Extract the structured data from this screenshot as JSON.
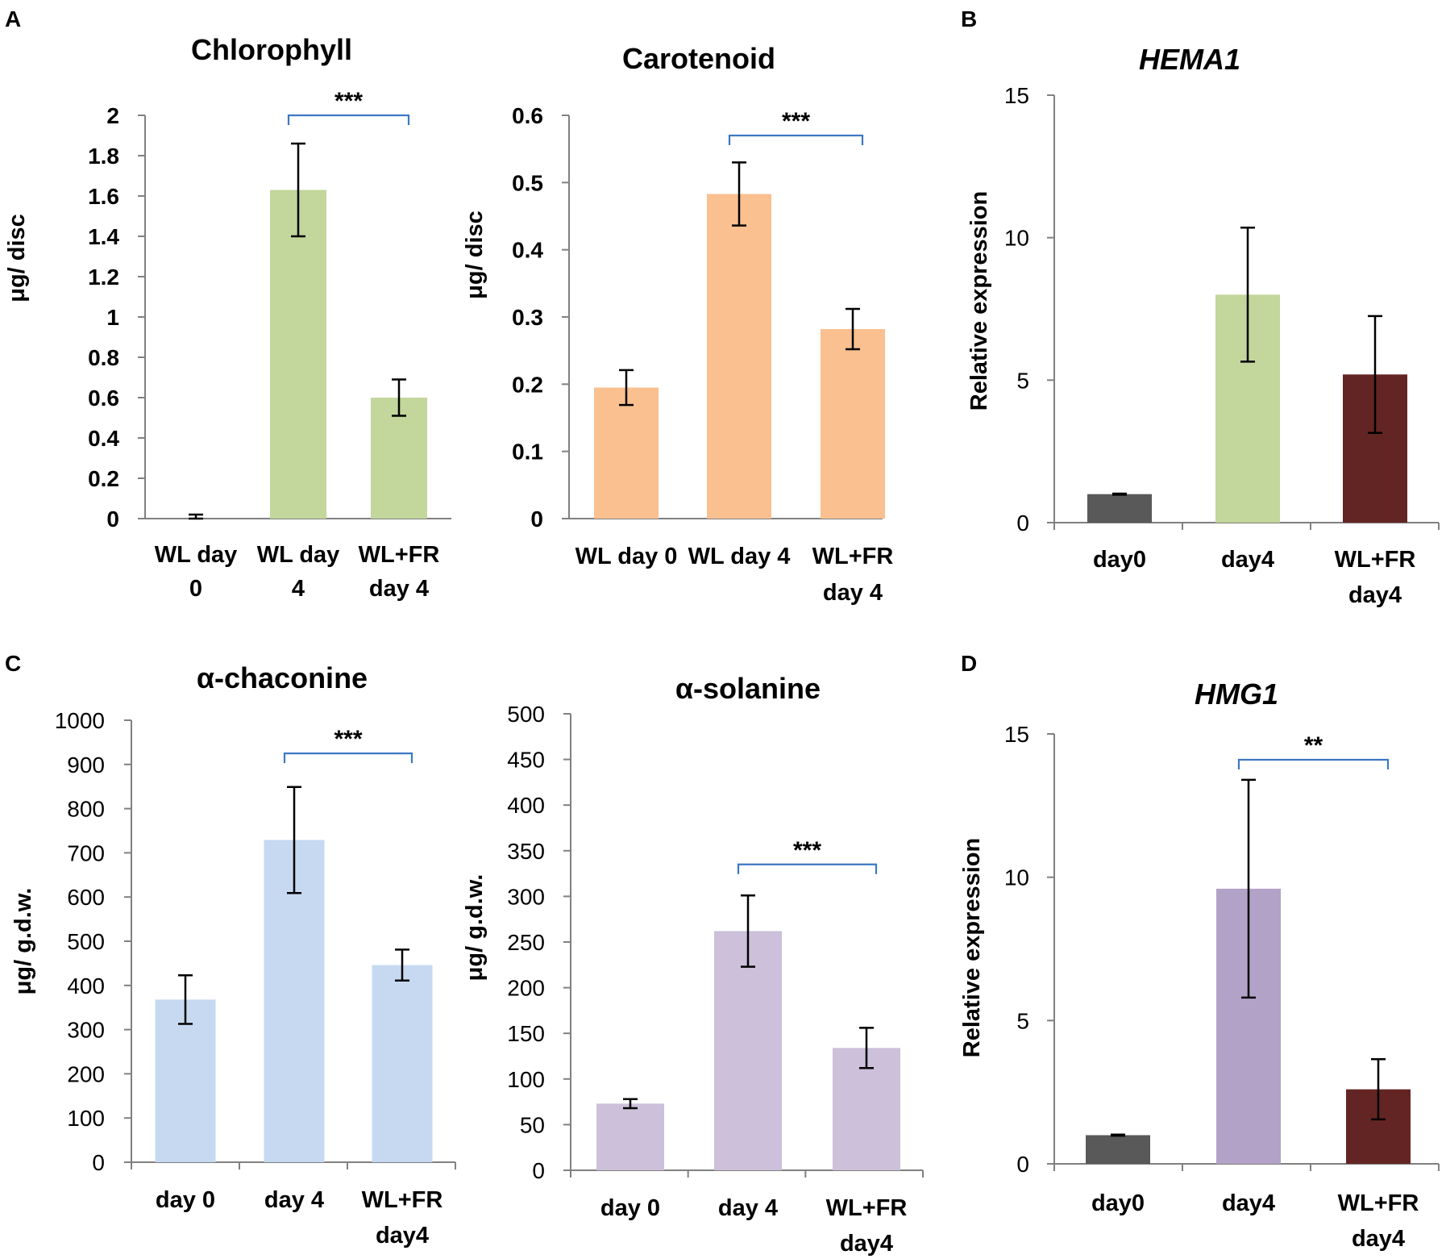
{
  "panel_labels": {
    "A": "A",
    "B": "B",
    "C": "C",
    "D": "D"
  },
  "chart_data": [
    {
      "id": "chlorophyll",
      "panel": "A",
      "type": "bar",
      "title": "Chlorophyll",
      "ylabel": "μg/ disc",
      "xlabel": "",
      "categories": [
        [
          "WL day",
          "0"
        ],
        [
          "WL day",
          "4"
        ],
        [
          "WL+FR",
          "day 4"
        ]
      ],
      "values": [
        0.0,
        1.63,
        0.6
      ],
      "errors": [
        0.02,
        0.23,
        0.09
      ],
      "colors": [
        "#c3d69b",
        "#c3d69b",
        "#c3d69b"
      ],
      "ylim": [
        0,
        2
      ],
      "yticks": [
        "0",
        "0.2",
        "0.4",
        "0.6",
        "0.8",
        "1",
        "1.2",
        "1.4",
        "1.6",
        "1.8",
        "2"
      ],
      "tick_values": [
        0,
        0.2,
        0.4,
        0.6,
        0.8,
        1,
        1.2,
        1.4,
        1.6,
        1.8,
        2
      ],
      "significance": {
        "from": 1,
        "to": 2,
        "label": "***",
        "level": 2.0
      }
    },
    {
      "id": "carotenoid",
      "panel": "A",
      "type": "bar",
      "title": "Carotenoid",
      "ylabel": "μg/ disc",
      "xlabel": "",
      "categories": [
        [
          "WL day 0"
        ],
        [
          "WL day 4"
        ],
        [
          "WL+FR",
          "day 4"
        ]
      ],
      "values": [
        0.195,
        0.483,
        0.282
      ],
      "errors": [
        0.026,
        0.047,
        0.03
      ],
      "colors": [
        "#fac090",
        "#fac090",
        "#fac090"
      ],
      "ylim": [
        0,
        0.6
      ],
      "yticks": [
        "0",
        "0.1",
        "0.2",
        "0.3",
        "0.4",
        "0.5",
        "0.6"
      ],
      "tick_values": [
        0,
        0.1,
        0.2,
        0.3,
        0.4,
        0.5,
        0.6
      ],
      "significance": {
        "from": 1,
        "to": 2,
        "label": "***",
        "level": 0.57
      }
    },
    {
      "id": "hema1",
      "panel": "B",
      "type": "bar",
      "title": "HEMA1",
      "title_italic": true,
      "ylabel": "Relative expression",
      "xlabel": "",
      "categories": [
        [
          "day0"
        ],
        [
          "day4"
        ],
        [
          "WL+FR",
          "day4"
        ]
      ],
      "values": [
        1.0,
        8.0,
        5.2
      ],
      "errors": [
        0.02,
        2.35,
        2.05
      ],
      "colors": [
        "#595959",
        "#c3d69b",
        "#632523"
      ],
      "ylim": [
        0,
        15
      ],
      "yticks": [
        "0",
        "5",
        "10",
        "15"
      ],
      "tick_values": [
        0,
        5,
        10,
        15
      ],
      "significance": null
    },
    {
      "id": "chaconine",
      "panel": "C",
      "type": "bar",
      "title": "α-chaconine",
      "ylabel": "μg/ g.d.w.",
      "xlabel": "",
      "categories": [
        [
          "day 0"
        ],
        [
          "day 4"
        ],
        [
          "WL+FR",
          "day4"
        ]
      ],
      "values": [
        368,
        729,
        446
      ],
      "errors": [
        55,
        120,
        35
      ],
      "colors": [
        "#c6d9f1",
        "#c6d9f1",
        "#c6d9f1"
      ],
      "ylim": [
        0,
        1000
      ],
      "yticks": [
        "0",
        "100",
        "200",
        "300",
        "400",
        "500",
        "600",
        "700",
        "800",
        "900",
        "1000"
      ],
      "tick_values": [
        0,
        100,
        200,
        300,
        400,
        500,
        600,
        700,
        800,
        900,
        1000
      ],
      "significance": {
        "from": 1,
        "to": 2,
        "label": "***",
        "level": 925
      }
    },
    {
      "id": "solanine",
      "panel": "C",
      "type": "bar",
      "title": "α-solanine",
      "ylabel": "μg/ g.d.w.",
      "xlabel": "",
      "categories": [
        [
          "day 0"
        ],
        [
          "day 4"
        ],
        [
          "WL+FR",
          "day4"
        ]
      ],
      "values": [
        73,
        262,
        134
      ],
      "errors": [
        5,
        39,
        22
      ],
      "colors": [
        "#ccc0da",
        "#ccc0da",
        "#ccc0da"
      ],
      "ylim": [
        0,
        500
      ],
      "yticks": [
        "0",
        "50",
        "100",
        "150",
        "200",
        "250",
        "300",
        "350",
        "400",
        "450",
        "500"
      ],
      "tick_values": [
        0,
        50,
        100,
        150,
        200,
        250,
        300,
        350,
        400,
        450,
        500
      ],
      "significance": {
        "from": 1,
        "to": 2,
        "label": "***",
        "level": 335
      }
    },
    {
      "id": "hmg1",
      "panel": "D",
      "type": "bar",
      "title": "HMG1",
      "title_italic": true,
      "ylabel": "Relative expression",
      "xlabel": "",
      "categories": [
        [
          "day0"
        ],
        [
          "day4"
        ],
        [
          "WL+FR",
          "day4"
        ]
      ],
      "values": [
        1.0,
        9.6,
        2.6
      ],
      "errors": [
        0.02,
        3.8,
        1.05
      ],
      "colors": [
        "#595959",
        "#b3a2c7",
        "#632523"
      ],
      "ylim": [
        0,
        15
      ],
      "yticks": [
        "0",
        "5",
        "10",
        "15"
      ],
      "tick_values": [
        0,
        5,
        10,
        15
      ],
      "significance": {
        "from": 1,
        "to": 2,
        "label": "**",
        "level": 14.1
      }
    }
  ]
}
